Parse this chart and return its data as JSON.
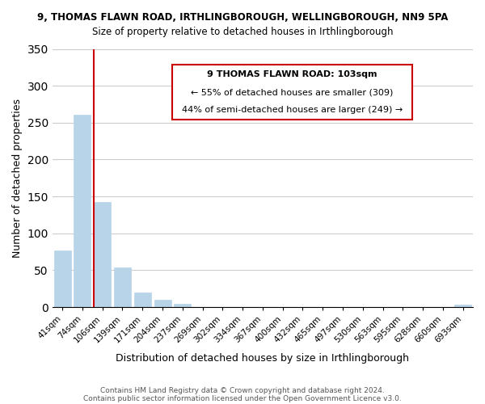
{
  "title": "9, THOMAS FLAWN ROAD, IRTHLINGBOROUGH, WELLINGBOROUGH, NN9 5PA",
  "subtitle": "Size of property relative to detached houses in Irthlingborough",
  "xlabel": "Distribution of detached houses by size in Irthlingborough",
  "ylabel": "Number of detached properties",
  "bar_labels": [
    "41sqm",
    "74sqm",
    "106sqm",
    "139sqm",
    "171sqm",
    "204sqm",
    "237sqm",
    "269sqm",
    "302sqm",
    "334sqm",
    "367sqm",
    "400sqm",
    "432sqm",
    "465sqm",
    "497sqm",
    "530sqm",
    "563sqm",
    "595sqm",
    "628sqm",
    "660sqm",
    "693sqm"
  ],
  "bar_values": [
    77,
    261,
    142,
    54,
    20,
    10,
    4,
    0,
    0,
    0,
    0,
    0,
    0,
    0,
    0,
    0,
    0,
    0,
    0,
    0,
    3
  ],
  "bar_color": "#b8d4e8",
  "vline_x": 1.575,
  "vline_color": "#cc0000",
  "ylim": [
    0,
    350
  ],
  "yticks": [
    0,
    50,
    100,
    150,
    200,
    250,
    300,
    350
  ],
  "annotation_title": "9 THOMAS FLAWN ROAD: 103sqm",
  "annotation_line1": "← 55% of detached houses are smaller (309)",
  "annotation_line2": "44% of semi-detached houses are larger (249) →",
  "footer1": "Contains HM Land Registry data © Crown copyright and database right 2024.",
  "footer2": "Contains public sector information licensed under the Open Government Licence v3.0.",
  "background_color": "#ffffff",
  "grid_color": "#cccccc"
}
